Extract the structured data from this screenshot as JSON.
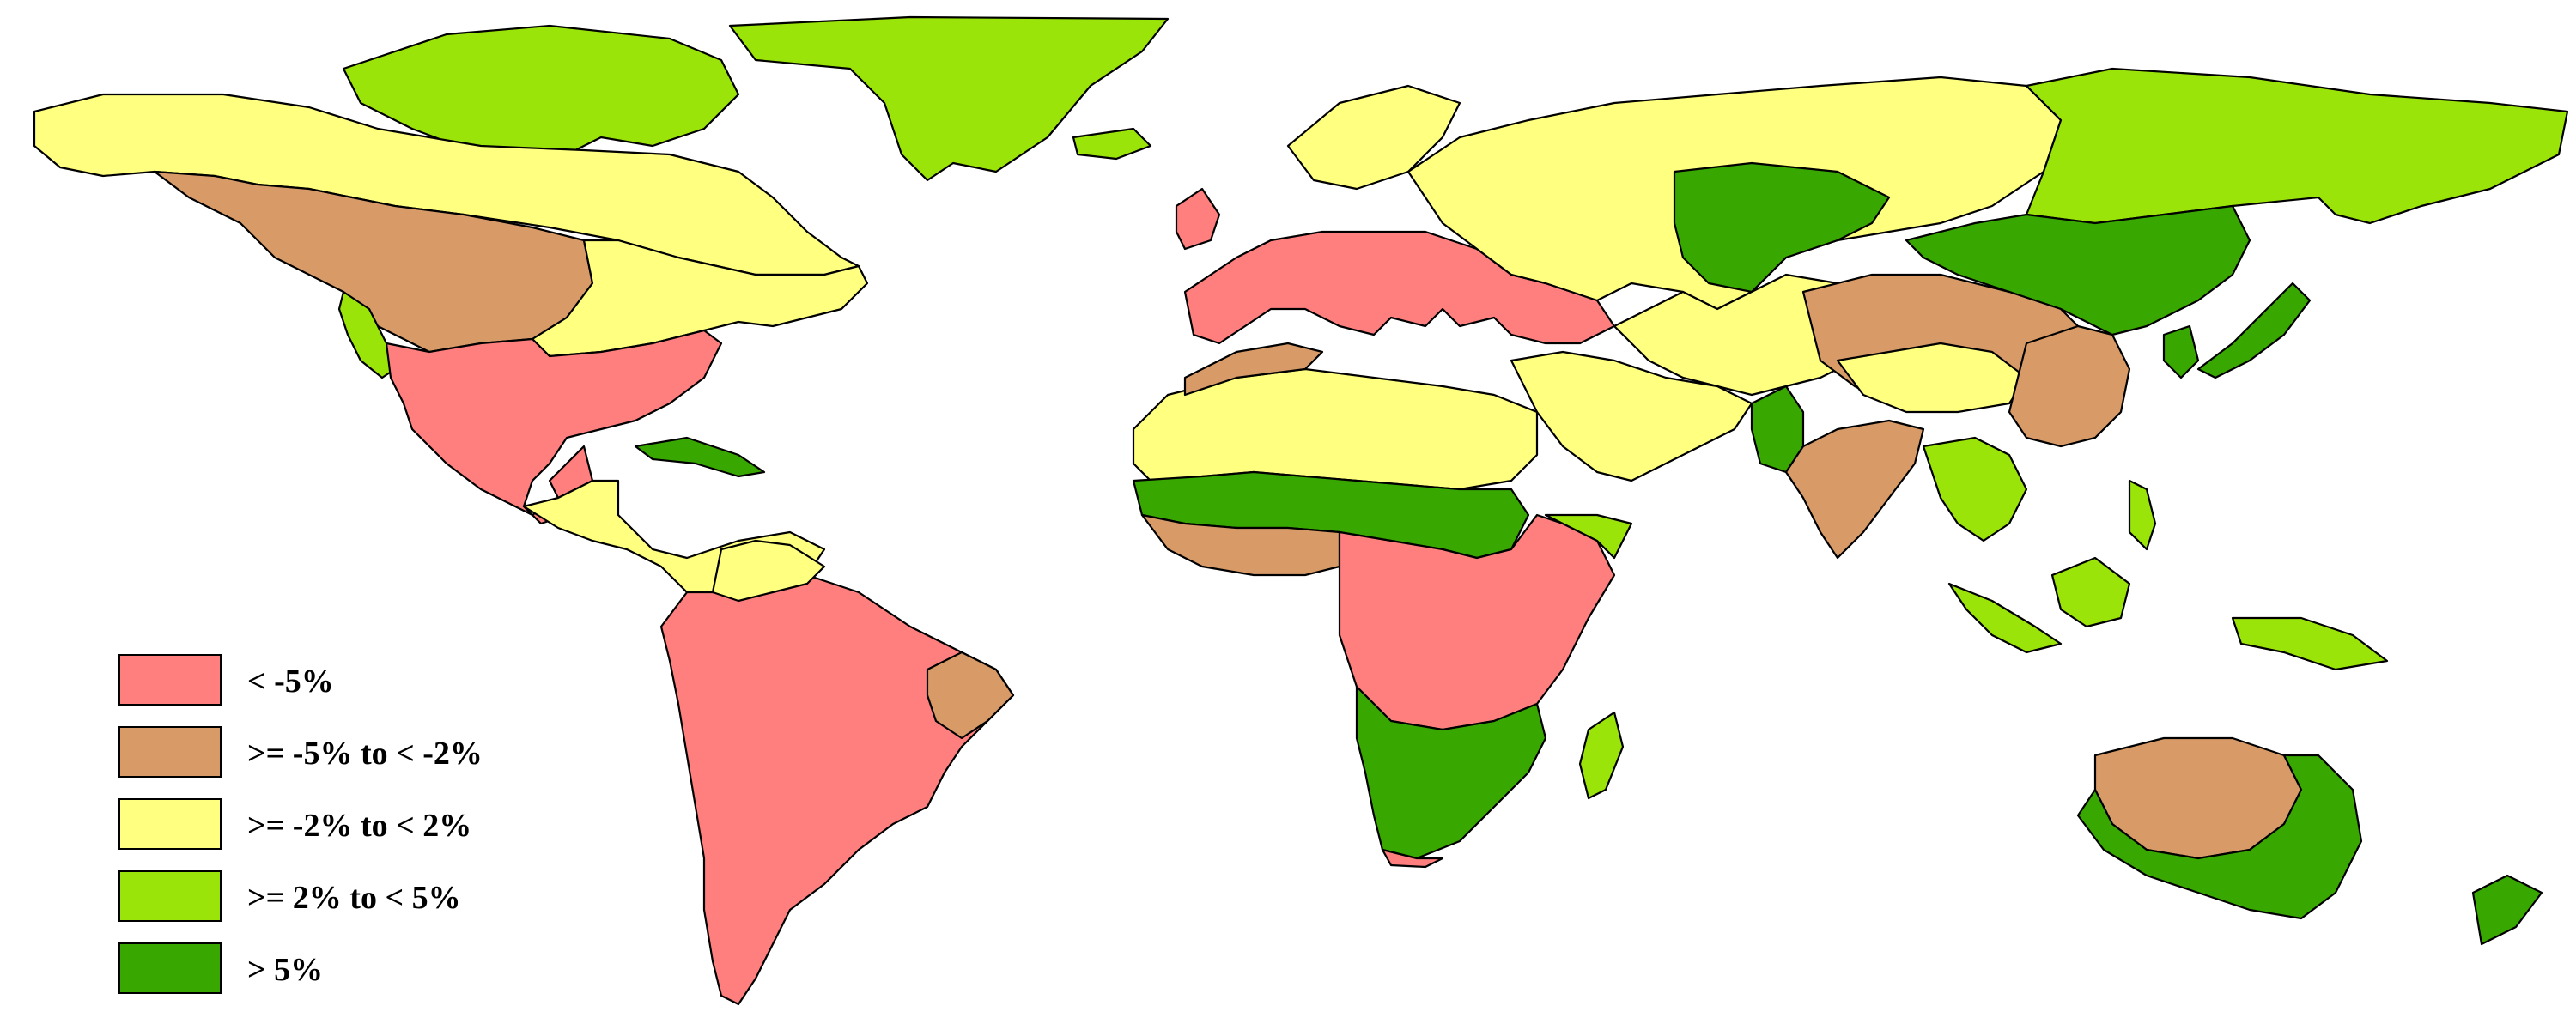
{
  "colors": {
    "c1": "#ff7f7f",
    "c2": "#d89b68",
    "c3": "#ffff80",
    "c4": "#9be40a",
    "c5": "#38a800",
    "water": "#ffffff",
    "border": "#000000"
  },
  "legend": [
    {
      "label": "< -5%",
      "color_key": "c1"
    },
    {
      "label": ">= -5% to < -2%",
      "color_key": "c2"
    },
    {
      "label": ">= -2% to < 2%",
      "color_key": "c3"
    },
    {
      "label": ">= 2% to < 5%",
      "color_key": "c4"
    },
    {
      "label": "> 5%",
      "color_key": "c5"
    }
  ]
}
